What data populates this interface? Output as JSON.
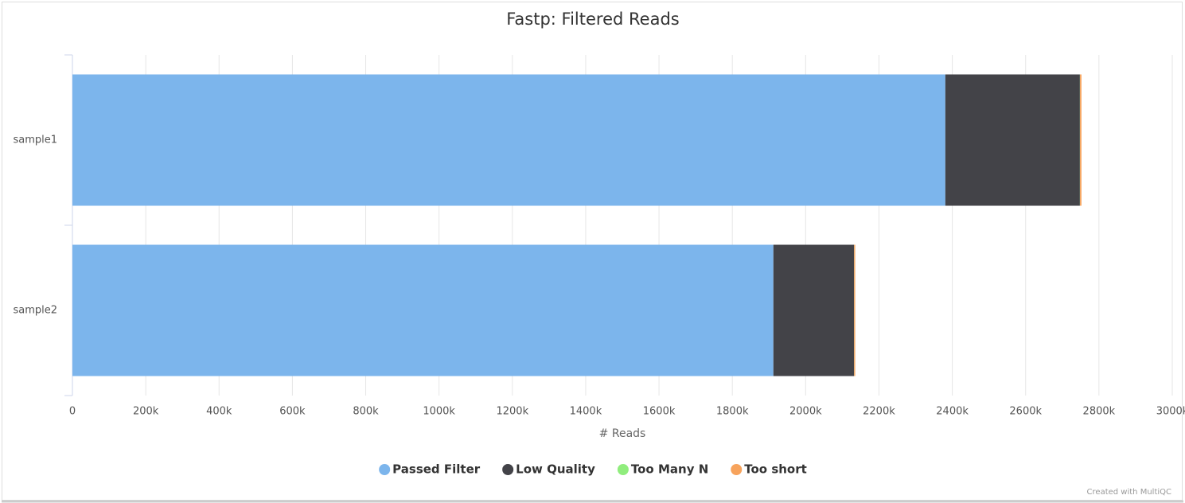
{
  "chart_data": {
    "type": "stacked-barh",
    "title": "Fastp: Filtered Reads",
    "categories": [
      "sample1",
      "sample2"
    ],
    "series": [
      {
        "name": "Passed Filter",
        "color": "#7cb5ec",
        "values": [
          2381000,
          1912000
        ]
      },
      {
        "name": "Low Quality",
        "color": "#434348",
        "values": [
          367000,
          220000
        ]
      },
      {
        "name": "Too Many N",
        "color": "#90ed7d",
        "values": [
          300,
          200
        ]
      },
      {
        "name": "Too short",
        "color": "#f7a35c",
        "values": [
          4000,
          3000
        ]
      }
    ],
    "xlim": [
      0,
      3000000
    ],
    "xticks": [
      0,
      {
        "value": 200000,
        "label": "200k"
      },
      {
        "value": 400000,
        "label": "400k"
      },
      {
        "value": 600000,
        "label": "600k"
      },
      {
        "value": 800000,
        "label": "800k"
      },
      {
        "value": 1000000,
        "label": "1000k"
      },
      {
        "value": 1200000,
        "label": "1200k"
      },
      {
        "value": 1400000,
        "label": "1400k"
      },
      {
        "value": 1600000,
        "label": "1600k"
      },
      {
        "value": 1800000,
        "label": "1800k"
      },
      {
        "value": 2000000,
        "label": "2000k"
      },
      {
        "value": 2200000,
        "label": "2200k"
      },
      {
        "value": 2400000,
        "label": "2400k"
      },
      {
        "value": 2600000,
        "label": "2600k"
      },
      {
        "value": 2800000,
        "label": "2800k"
      },
      {
        "value": 3000000,
        "label": "3000k"
      }
    ],
    "xlabel": "# Reads",
    "grid": true,
    "legend": "bottom",
    "credit": "Created with MultiQC"
  }
}
